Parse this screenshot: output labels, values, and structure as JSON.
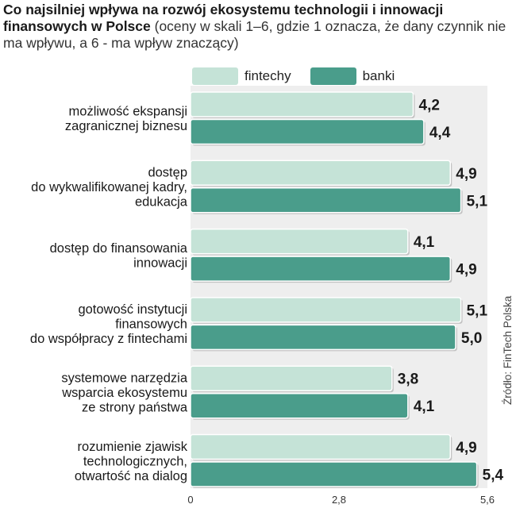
{
  "header": {
    "title": "Co najsilniej wpływa na rozwój ekosystemu technologii i innowacji finansowych w Polsce",
    "subtitle": "(oceny w skali 1–6, gdzie 1 oznacza, że dany czynnik nie ma wpływu, a 6 - ma wpływ znaczący)"
  },
  "source": "Źródło: FinTech Polska",
  "colors": {
    "fintechy": "#c5e3d7",
    "banki": "#4a9d8b",
    "panel": "#eeeeee"
  },
  "chart_data": {
    "type": "bar",
    "orientation": "horizontal",
    "title": "Co najsilniej wpływa na rozwój ekosystemu technologii i innowacji finansowych w Polsce",
    "subtitle": "(oceny w skali 1–6, gdzie 1 oznacza, że dany czynnik nie ma wpływu, a 6 - ma wpływ znaczący)",
    "categories": [
      [
        "możliwość ekspansji",
        "zagranicznej biznesu"
      ],
      [
        "dostęp",
        "do wykwalifikowanej kadry,",
        "edukacja"
      ],
      [
        "dostęp do finansowania",
        "innowacji"
      ],
      [
        "gotowość instytucji",
        "finansowych",
        "do współpracy z fintechami"
      ],
      [
        "systemowe narzędzia",
        "wsparcia ekosystemu",
        "ze strony państwa"
      ],
      [
        "rozumienie zjawisk",
        "technologicznych,",
        "otwartość na dialog"
      ]
    ],
    "series": [
      {
        "name": "fintechy",
        "values": [
          4.2,
          4.9,
          4.1,
          5.1,
          3.8,
          4.9
        ],
        "labels": [
          "4,2",
          "4,9",
          "4,1",
          "5,1",
          "3,8",
          "4,9"
        ]
      },
      {
        "name": "banki",
        "values": [
          4.4,
          5.1,
          4.9,
          5.0,
          4.1,
          5.4
        ],
        "labels": [
          "4,4",
          "5,1",
          "4,9",
          "5,0",
          "4,1",
          "5,4"
        ]
      }
    ],
    "xlim": [
      0,
      5.6
    ],
    "ticks": [
      0,
      2.8,
      5.6
    ],
    "tick_labels": [
      "0",
      "2,8",
      "5,6"
    ],
    "legend": "top",
    "grid": false
  }
}
